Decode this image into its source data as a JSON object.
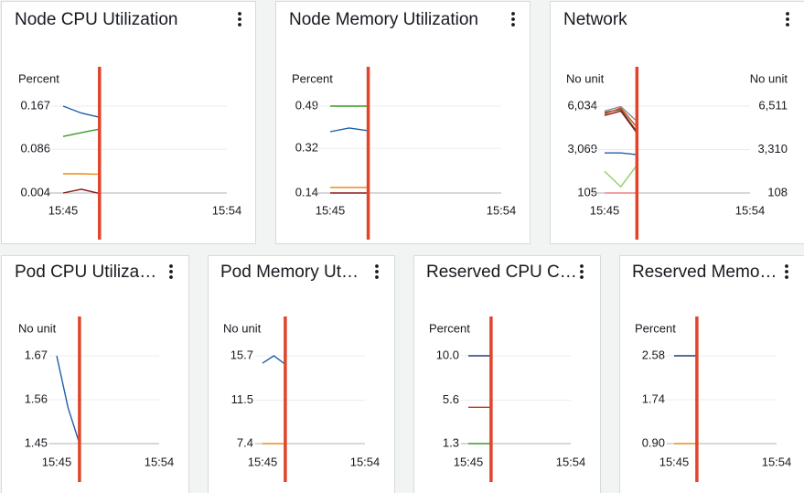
{
  "chart_data": [
    {
      "type": "line",
      "title": "Node CPU Utilization",
      "ylabel": "Percent",
      "categories": [
        null,
        "15:45",
        null,
        null,
        null,
        null,
        null,
        null,
        null,
        null,
        "15:54"
      ],
      "ylim": [
        0.004,
        0.167
      ],
      "yticks": [
        0.004,
        0.086,
        0.167
      ],
      "grid": true,
      "series": [
        {
          "color": "#1f5fa8",
          "values": [
            null,
            0.167,
            0.154,
            0.146,
            null,
            null,
            null,
            null,
            null,
            null,
            null
          ]
        },
        {
          "color": "#3a9a2a",
          "values": [
            null,
            0.11,
            0.117,
            0.124,
            null,
            null,
            null,
            null,
            null,
            null,
            null
          ]
        },
        {
          "color": "#ec8a1f",
          "values": [
            null,
            0.04,
            0.04,
            0.039,
            null,
            null,
            null,
            null,
            null,
            null,
            null
          ]
        },
        {
          "color": "#8b1a1a",
          "values": [
            null,
            0.004,
            0.011,
            0.003,
            null,
            null,
            null,
            null,
            null,
            null,
            null
          ]
        }
      ]
    },
    {
      "type": "line",
      "title": "Node Memory Utilization",
      "ylabel": "Percent",
      "categories": [
        null,
        "15:45",
        null,
        null,
        null,
        null,
        null,
        null,
        null,
        null,
        "15:54"
      ],
      "ylim": [
        0.14,
        0.49
      ],
      "yticks": [
        0.14,
        0.32,
        0.49
      ],
      "grid": true,
      "series": [
        {
          "color": "#3a9a2a",
          "values": [
            null,
            0.49,
            0.49,
            0.49,
            null,
            null,
            null,
            null,
            null,
            null,
            null
          ]
        },
        {
          "color": "#1f5fa8",
          "values": [
            null,
            0.387,
            0.402,
            0.391,
            null,
            null,
            null,
            null,
            null,
            null,
            null
          ]
        },
        {
          "color": "#ec8a1f",
          "values": [
            null,
            0.162,
            0.162,
            0.162,
            null,
            null,
            null,
            null,
            null,
            null,
            null
          ]
        },
        {
          "color": "#8b1a1a",
          "values": [
            null,
            0.14,
            0.14,
            0.14,
            null,
            null,
            null,
            null,
            null,
            null,
            null
          ]
        }
      ]
    },
    {
      "type": "line",
      "title": "Network",
      "ylabel": "No unit",
      "y2label": "No unit",
      "categories": [
        null,
        "15:45",
        null,
        null,
        null,
        null,
        null,
        null,
        null,
        null,
        "15:54"
      ],
      "ylim": [
        105,
        6034
      ],
      "yticks": [
        105,
        {
          "value": 3069,
          "label": "3,069"
        },
        {
          "value": 6034,
          "label": "6,034"
        }
      ],
      "y2lim": [
        108,
        6511
      ],
      "y2ticks": [
        108,
        {
          "value": 3310,
          "label": "3,310"
        },
        {
          "value": 6511,
          "label": "6,511"
        }
      ],
      "grid": true,
      "series": [
        {
          "color": "#8c8c8c",
          "values": [
            null,
            5700,
            6000,
            5000,
            null,
            null,
            null,
            null,
            null,
            null,
            null
          ]
        },
        {
          "color": "#2f6b2f",
          "values": [
            null,
            5600,
            5800,
            4300,
            null,
            null,
            null,
            null,
            null,
            null,
            null
          ]
        },
        {
          "color": "#e0452b",
          "values": [
            null,
            5500,
            5900,
            4600,
            null,
            null,
            null,
            null,
            null,
            null,
            null
          ]
        },
        {
          "color": "#8b1a1a",
          "values": [
            null,
            5400,
            5700,
            4200,
            null,
            null,
            null,
            null,
            null,
            null,
            null
          ]
        },
        {
          "color": "#1f5fa8",
          "values": [
            null,
            2840,
            2840,
            2720,
            null,
            null,
            null,
            null,
            null,
            null,
            null
          ]
        },
        {
          "color": "#8fd16a",
          "values": [
            null,
            1590,
            530,
            2000,
            null,
            null,
            null,
            null,
            null,
            null,
            null
          ]
        },
        {
          "color": "#f08080",
          "values": [
            null,
            105,
            105,
            105,
            null,
            null,
            null,
            null,
            null,
            null,
            null
          ]
        }
      ]
    },
    {
      "type": "line",
      "title": "Pod CPU Utiliza…",
      "ylabel": "No unit",
      "categories": [
        null,
        "15:45",
        null,
        null,
        null,
        null,
        null,
        null,
        null,
        null,
        "15:54"
      ],
      "ylim": [
        1.45,
        1.67
      ],
      "yticks": [
        1.45,
        1.56,
        1.67
      ],
      "grid": true,
      "series": [
        {
          "color": "#1f5fa8",
          "values": [
            null,
            1.67,
            1.54,
            1.45,
            null,
            null,
            null,
            null,
            null,
            null,
            null
          ]
        }
      ]
    },
    {
      "type": "line",
      "title": "Pod Memory Ut…",
      "ylabel": "No unit",
      "categories": [
        null,
        "15:45",
        null,
        null,
        null,
        null,
        null,
        null,
        null,
        null,
        "15:54"
      ],
      "ylim": [
        7.4,
        15.7
      ],
      "yticks": [
        7.4,
        11.5,
        15.7
      ],
      "grid": true,
      "series": [
        {
          "color": "#1f5fa8",
          "values": [
            null,
            15.0,
            15.7,
            14.9,
            null,
            null,
            null,
            null,
            null,
            null,
            null
          ]
        },
        {
          "color": "#ec8a1f",
          "values": [
            null,
            7.4,
            7.4,
            7.4,
            null,
            null,
            null,
            null,
            null,
            null,
            null
          ]
        }
      ]
    },
    {
      "type": "line",
      "title": "Reserved CPU C…",
      "ylabel": "Percent",
      "categories": [
        null,
        "15:45",
        null,
        null,
        null,
        null,
        null,
        null,
        null,
        null,
        "15:54"
      ],
      "ylim": [
        1.3,
        10
      ],
      "yticks": [
        1.3,
        5.6,
        {
          "value": 10,
          "label": "10.0"
        }
      ],
      "grid": true,
      "series": [
        {
          "color": "#1f3f7a",
          "values": [
            null,
            10,
            10,
            10,
            null,
            null,
            null,
            null,
            null,
            null,
            null
          ]
        },
        {
          "color": "#d13212",
          "values": [
            null,
            4.9,
            4.9,
            4.9,
            null,
            null,
            null,
            null,
            null,
            null,
            null
          ]
        },
        {
          "color": "#3a9a2a",
          "values": [
            null,
            1.3,
            1.3,
            1.3,
            null,
            null,
            null,
            null,
            null,
            null,
            null
          ]
        }
      ]
    },
    {
      "type": "line",
      "title": "Reserved Memo…",
      "ylabel": "Percent",
      "categories": [
        null,
        "15:45",
        null,
        null,
        null,
        null,
        null,
        null,
        null,
        null,
        "15:54"
      ],
      "ylim": [
        0.9,
        2.58
      ],
      "yticks": [
        {
          "value": 0.9,
          "label": "0.90"
        },
        1.74,
        2.58
      ],
      "grid": true,
      "series": [
        {
          "color": "#1f3f7a",
          "values": [
            null,
            2.58,
            2.58,
            2.58,
            null,
            null,
            null,
            null,
            null,
            null,
            null
          ]
        },
        {
          "color": "#ec8a1f",
          "values": [
            null,
            0.9,
            0.9,
            0.9,
            null,
            null,
            null,
            null,
            null,
            null,
            null
          ]
        }
      ]
    }
  ]
}
